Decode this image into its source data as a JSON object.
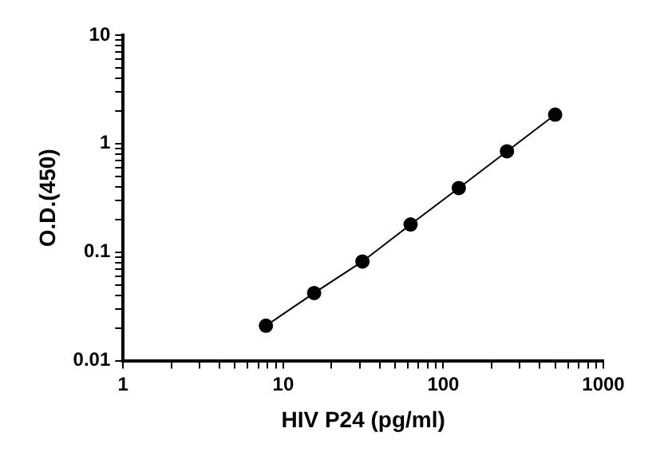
{
  "chart_data": {
    "type": "line",
    "xlabel": "HIV P24 (pg/ml)",
    "ylabel": "O.D.(450)",
    "log": "xy",
    "marker": "circle",
    "line_style": "solid",
    "grid": false,
    "legend": false,
    "x": [
      7.8,
      15.6,
      31.25,
      62.5,
      125,
      250,
      500
    ],
    "series": [
      {
        "color": "#000000",
        "values": [
          0.021,
          0.042,
          0.082,
          0.18,
          0.39,
          0.85,
          1.85
        ]
      }
    ],
    "xlim": [
      1,
      1000
    ],
    "xticks": [
      1,
      {
        "value": 2,
        "label": null
      },
      {
        "value": 3,
        "label": null
      },
      {
        "value": 4,
        "label": null
      },
      {
        "value": 5,
        "label": null
      },
      {
        "value": 6,
        "label": null
      },
      {
        "value": 7,
        "label": null
      },
      {
        "value": 8,
        "label": null
      },
      {
        "value": 9,
        "label": null
      },
      10,
      {
        "value": 20,
        "label": null
      },
      {
        "value": 30,
        "label": null
      },
      {
        "value": 40,
        "label": null
      },
      {
        "value": 50,
        "label": null
      },
      {
        "value": 60,
        "label": null
      },
      {
        "value": 70,
        "label": null
      },
      {
        "value": 80,
        "label": null
      },
      {
        "value": 90,
        "label": null
      },
      100,
      {
        "value": 200,
        "label": null
      },
      {
        "value": 300,
        "label": null
      },
      {
        "value": 400,
        "label": null
      },
      {
        "value": 500,
        "label": null
      },
      {
        "value": 600,
        "label": null
      },
      {
        "value": 700,
        "label": null
      },
      {
        "value": 800,
        "label": null
      },
      {
        "value": 900,
        "label": null
      },
      1000
    ],
    "ylim": [
      0.01,
      10
    ],
    "yticks": [
      0.01,
      {
        "value": 0.02,
        "label": null
      },
      {
        "value": 0.03,
        "label": null
      },
      {
        "value": 0.04,
        "label": null
      },
      {
        "value": 0.05,
        "label": null
      },
      {
        "value": 0.06,
        "label": null
      },
      {
        "value": 0.07,
        "label": null
      },
      {
        "value": 0.08,
        "label": null
      },
      {
        "value": 0.09,
        "label": null
      },
      0.1,
      {
        "value": 0.2,
        "label": null
      },
      {
        "value": 0.3,
        "label": null
      },
      {
        "value": 0.4,
        "label": null
      },
      {
        "value": 0.5,
        "label": null
      },
      {
        "value": 0.6,
        "label": null
      },
      {
        "value": 0.7,
        "label": null
      },
      {
        "value": 0.8,
        "label": null
      },
      {
        "value": 0.9,
        "label": null
      },
      1,
      {
        "value": 2,
        "label": null
      },
      {
        "value": 3,
        "label": null
      },
      {
        "value": 4,
        "label": null
      },
      {
        "value": 5,
        "label": null
      },
      {
        "value": 6,
        "label": null
      },
      {
        "value": 7,
        "label": null
      },
      {
        "value": 8,
        "label": null
      },
      {
        "value": 9,
        "label": null
      },
      10
    ]
  }
}
